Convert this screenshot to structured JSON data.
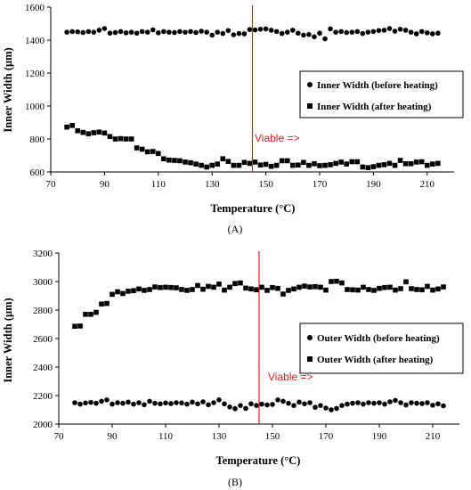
{
  "figure": {
    "panel_labels": [
      "(A)",
      "(B)"
    ]
  },
  "chart_data": [
    {
      "type": "scatter",
      "panel": "(A)",
      "xlabel": "Temperature (°C)",
      "ylabel": "Inner Width (μm)",
      "xlim": [
        70,
        220
      ],
      "ylim": [
        600,
        1600
      ],
      "xticks": [
        70,
        90,
        110,
        130,
        150,
        170,
        190,
        210
      ],
      "yticks": [
        600,
        800,
        1000,
        1200,
        1400,
        1600
      ],
      "grid": false,
      "legend_position": "right",
      "annotation": {
        "text": "Viable =>",
        "line_x": 145,
        "color": "#e0201f"
      },
      "series": [
        {
          "name": "Inner Width (before heating)",
          "marker": "circle",
          "x": [
            76,
            78,
            80,
            82,
            84,
            86,
            88,
            90,
            92,
            94,
            96,
            98,
            100,
            102,
            104,
            106,
            108,
            110,
            112,
            114,
            116,
            118,
            120,
            122,
            124,
            126,
            128,
            130,
            132,
            134,
            136,
            138,
            140,
            142,
            144,
            146,
            148,
            150,
            152,
            154,
            156,
            158,
            160,
            162,
            164,
            166,
            168,
            170,
            172,
            174,
            176,
            178,
            180,
            182,
            184,
            186,
            188,
            190,
            192,
            194,
            196,
            198,
            200,
            202,
            204,
            206,
            208,
            210,
            212,
            214
          ],
          "y": [
            1448,
            1452,
            1450,
            1446,
            1452,
            1448,
            1460,
            1470,
            1442,
            1446,
            1452,
            1444,
            1448,
            1442,
            1452,
            1448,
            1462,
            1444,
            1452,
            1448,
            1446,
            1452,
            1448,
            1452,
            1446,
            1454,
            1448,
            1430,
            1448,
            1440,
            1458,
            1432,
            1440,
            1438,
            1464,
            1462,
            1466,
            1468,
            1460,
            1452,
            1440,
            1448,
            1460,
            1442,
            1430,
            1434,
            1420,
            1442,
            1408,
            1468,
            1448,
            1452,
            1446,
            1448,
            1452,
            1440,
            1448,
            1452,
            1458,
            1460,
            1470,
            1454,
            1466,
            1460,
            1448,
            1438,
            1452,
            1444,
            1438,
            1442
          ]
        },
        {
          "name": "Inner Width (after heating)",
          "marker": "square",
          "x": [
            76,
            78,
            80,
            82,
            84,
            86,
            88,
            90,
            92,
            94,
            96,
            98,
            100,
            102,
            104,
            106,
            108,
            110,
            112,
            114,
            116,
            118,
            120,
            122,
            124,
            126,
            128,
            130,
            132,
            134,
            136,
            138,
            140,
            142,
            144,
            146,
            148,
            150,
            152,
            154,
            156,
            158,
            160,
            162,
            164,
            166,
            168,
            170,
            172,
            174,
            176,
            178,
            180,
            182,
            184,
            186,
            188,
            190,
            192,
            194,
            196,
            198,
            200,
            202,
            204,
            206,
            208,
            210,
            212,
            214
          ],
          "y": [
            872,
            882,
            850,
            840,
            832,
            838,
            842,
            836,
            815,
            800,
            802,
            800,
            800,
            746,
            738,
            722,
            724,
            712,
            680,
            672,
            670,
            668,
            660,
            656,
            648,
            640,
            630,
            640,
            648,
            680,
            664,
            640,
            640,
            658,
            652,
            660,
            642,
            646,
            634,
            640,
            668,
            668,
            640,
            642,
            658,
            640,
            650,
            638,
            640,
            644,
            652,
            660,
            648,
            662,
            662,
            630,
            626,
            632,
            640,
            644,
            652,
            640,
            670,
            650,
            650,
            660,
            662,
            640,
            648,
            652
          ]
        }
      ]
    },
    {
      "type": "scatter",
      "panel": "(B)",
      "xlabel": "Temperature (°C)",
      "ylabel": "Inner Width (μm)",
      "xlim": [
        70,
        220
      ],
      "ylim": [
        2000,
        3200
      ],
      "xticks": [
        70,
        90,
        110,
        130,
        150,
        170,
        190,
        210
      ],
      "yticks": [
        2000,
        2200,
        2400,
        2600,
        2800,
        3000,
        3200
      ],
      "grid": false,
      "legend_position": "right",
      "annotation": {
        "text": "Viable =>",
        "line_x": 145,
        "color": "#e0201f"
      },
      "series": [
        {
          "name": "Outer Width (before heating)",
          "marker": "circle",
          "x": [
            76,
            78,
            80,
            82,
            84,
            86,
            88,
            90,
            92,
            94,
            96,
            98,
            100,
            102,
            104,
            106,
            108,
            110,
            112,
            114,
            116,
            118,
            120,
            122,
            124,
            126,
            128,
            130,
            132,
            134,
            136,
            138,
            140,
            142,
            144,
            146,
            148,
            150,
            152,
            154,
            156,
            158,
            160,
            162,
            164,
            166,
            168,
            170,
            172,
            174,
            176,
            178,
            180,
            182,
            184,
            186,
            188,
            190,
            192,
            194,
            196,
            198,
            200,
            202,
            204,
            206,
            208,
            210,
            212,
            214
          ],
          "y": [
            2150,
            2140,
            2148,
            2152,
            2146,
            2160,
            2170,
            2140,
            2150,
            2146,
            2154,
            2140,
            2150,
            2136,
            2160,
            2146,
            2142,
            2148,
            2144,
            2150,
            2148,
            2140,
            2154,
            2142,
            2156,
            2136,
            2150,
            2170,
            2142,
            2120,
            2108,
            2130,
            2110,
            2142,
            2130,
            2140,
            2134,
            2138,
            2170,
            2160,
            2146,
            2130,
            2154,
            2142,
            2150,
            2118,
            2130,
            2112,
            2100,
            2110,
            2130,
            2140,
            2146,
            2150,
            2140,
            2150,
            2146,
            2150,
            2140,
            2156,
            2166,
            2150,
            2134,
            2150,
            2146,
            2144,
            2150,
            2132,
            2142,
            2128
          ]
        },
        {
          "name": "Outer Width (after heating)",
          "marker": "square",
          "x": [
            76,
            78,
            80,
            82,
            84,
            86,
            88,
            90,
            92,
            94,
            96,
            98,
            100,
            102,
            104,
            106,
            108,
            110,
            112,
            114,
            116,
            118,
            120,
            122,
            124,
            126,
            128,
            130,
            132,
            134,
            136,
            138,
            140,
            142,
            144,
            146,
            148,
            150,
            152,
            154,
            156,
            158,
            160,
            162,
            164,
            166,
            168,
            170,
            172,
            174,
            176,
            178,
            180,
            182,
            184,
            186,
            188,
            190,
            192,
            194,
            196,
            198,
            200,
            202,
            204,
            206,
            208,
            210,
            212,
            214
          ],
          "y": [
            2686,
            2688,
            2770,
            2770,
            2784,
            2842,
            2846,
            2910,
            2928,
            2916,
            2932,
            2936,
            2948,
            2938,
            2944,
            2962,
            2958,
            2960,
            2958,
            2956,
            2944,
            2938,
            2944,
            2972,
            2946,
            2966,
            2960,
            2982,
            2940,
            2960,
            2986,
            2990,
            2954,
            2948,
            2942,
            2960,
            2938,
            2958,
            2952,
            2912,
            2938,
            2948,
            2960,
            2968,
            2962,
            2964,
            2960,
            2940,
            3000,
            3002,
            2990,
            2944,
            2942,
            2940,
            2960,
            2944,
            2938,
            2952,
            2958,
            2960,
            2940,
            2950,
            2998,
            2950,
            2944,
            2942,
            2966,
            2940,
            2948,
            2962
          ]
        }
      ]
    }
  ]
}
